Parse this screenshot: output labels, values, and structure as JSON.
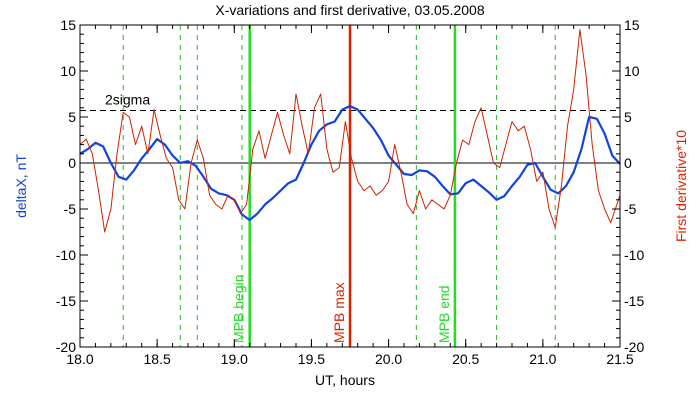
{
  "chart_data": {
    "type": "line",
    "title": "X-variations and first derivative, 03.05.2008",
    "xlabel": "UT, hours",
    "ylabel": "deltaX, nT",
    "y2label": "First derivative*10",
    "xlim": [
      18.0,
      21.5
    ],
    "ylim": [
      -20,
      15
    ],
    "y2lim": [
      -20,
      15
    ],
    "x_ticks": [
      "18.0",
      "18.5",
      "19.0",
      "19.5",
      "20.0",
      "20.5",
      "21.0",
      "21.5"
    ],
    "y_ticks": [
      "-20",
      "-15",
      "-10",
      "-5",
      "0",
      "5",
      "10",
      "15"
    ],
    "threshold": {
      "label": "2sigma",
      "value": 5.7
    },
    "zero_line": 0,
    "markers": [
      {
        "label": "MPB begin",
        "x": 19.1,
        "color": "#22dd22"
      },
      {
        "label": "MPB max",
        "x": 19.75,
        "color": "#dd2200"
      },
      {
        "label": "MPB end",
        "x": 20.43,
        "color": "#22dd22"
      }
    ],
    "dashed_lines_x": [
      18.28,
      18.65,
      18.76,
      19.05,
      20.18,
      20.7,
      21.08
    ],
    "dashed_color": "#22bb22",
    "series": [
      {
        "axis": "left",
        "color": "#1144dd",
        "x": [
          18.0,
          18.05,
          18.1,
          18.15,
          18.2,
          18.25,
          18.3,
          18.35,
          18.4,
          18.45,
          18.5,
          18.55,
          18.6,
          18.65,
          18.7,
          18.75,
          18.8,
          18.85,
          18.9,
          18.95,
          19.0,
          19.05,
          19.1,
          19.15,
          19.2,
          19.25,
          19.3,
          19.35,
          19.4,
          19.45,
          19.5,
          19.55,
          19.6,
          19.65,
          19.7,
          19.75,
          19.8,
          19.85,
          19.9,
          19.95,
          20.0,
          20.05,
          20.1,
          20.15,
          20.2,
          20.25,
          20.3,
          20.35,
          20.4,
          20.45,
          20.5,
          20.55,
          20.6,
          20.65,
          20.7,
          20.75,
          20.8,
          20.85,
          20.9,
          20.95,
          21.0,
          21.05,
          21.1,
          21.15,
          21.2,
          21.25,
          21.3,
          21.35,
          21.4,
          21.45,
          21.5
        ],
        "y": [
          1.0,
          1.5,
          2.2,
          1.8,
          0.0,
          -1.5,
          -1.8,
          -0.8,
          0.5,
          1.5,
          2.6,
          2.0,
          0.8,
          0.0,
          0.2,
          -0.3,
          -1.5,
          -2.8,
          -3.3,
          -3.5,
          -4.0,
          -5.6,
          -6.2,
          -5.5,
          -4.5,
          -3.8,
          -3.0,
          -2.2,
          -1.8,
          0.0,
          2.0,
          3.5,
          4.2,
          4.5,
          5.8,
          6.2,
          5.8,
          4.8,
          3.8,
          2.5,
          0.8,
          -0.2,
          -1.2,
          -1.3,
          -0.8,
          -0.9,
          -1.5,
          -2.5,
          -3.4,
          -3.3,
          -2.2,
          -1.8,
          -2.5,
          -3.2,
          -4.0,
          -3.6,
          -2.5,
          -1.5,
          -0.2,
          0.0,
          -1.5,
          -2.9,
          -3.3,
          -2.5,
          -1.0,
          1.5,
          5.0,
          4.8,
          3.2,
          0.8,
          -0.1
        ]
      },
      {
        "axis": "right",
        "color": "#cc2200",
        "x": [
          18.0,
          18.04,
          18.08,
          18.12,
          18.16,
          18.2,
          18.24,
          18.28,
          18.32,
          18.36,
          18.4,
          18.44,
          18.48,
          18.52,
          18.56,
          18.6,
          18.64,
          18.68,
          18.72,
          18.76,
          18.8,
          18.84,
          18.88,
          18.92,
          18.96,
          19.0,
          19.04,
          19.08,
          19.12,
          19.16,
          19.2,
          19.24,
          19.28,
          19.32,
          19.36,
          19.4,
          19.44,
          19.48,
          19.52,
          19.56,
          19.6,
          19.64,
          19.68,
          19.72,
          19.76,
          19.8,
          19.84,
          19.88,
          19.92,
          19.96,
          20.0,
          20.04,
          20.08,
          20.12,
          20.16,
          20.2,
          20.24,
          20.28,
          20.32,
          20.36,
          20.4,
          20.44,
          20.48,
          20.52,
          20.56,
          20.6,
          20.64,
          20.68,
          20.72,
          20.76,
          20.8,
          20.84,
          20.88,
          20.92,
          20.96,
          21.0,
          21.04,
          21.08,
          21.12,
          21.16,
          21.2,
          21.24,
          21.28,
          21.32,
          21.36,
          21.4,
          21.44,
          21.48,
          21.5
        ],
        "y": [
          2.0,
          2.6,
          1.0,
          -3.0,
          -7.5,
          -5.0,
          1.0,
          5.5,
          5.0,
          2.0,
          4.0,
          1.0,
          5.8,
          3.0,
          0.5,
          -0.5,
          -4.0,
          -5.0,
          0.0,
          2.5,
          0.5,
          -3.5,
          -4.5,
          -5.0,
          -3.5,
          -4.0,
          -5.5,
          -4.5,
          1.5,
          3.5,
          0.5,
          3.0,
          5.5,
          3.0,
          1.0,
          7.5,
          4.0,
          1.0,
          6.0,
          7.5,
          1.5,
          -1.0,
          -0.5,
          4.5,
          0.5,
          -2.0,
          -3.0,
          -2.5,
          -3.5,
          -3.0,
          -2.0,
          2.0,
          -1.0,
          -4.5,
          -5.5,
          -3.0,
          -5.0,
          -4.0,
          -4.5,
          -5.0,
          -3.5,
          0.0,
          2.5,
          2.0,
          4.5,
          6.0,
          3.0,
          0.0,
          -0.5,
          2.0,
          4.5,
          3.5,
          4.0,
          1.5,
          -2.0,
          -1.0,
          -5.0,
          -7.0,
          -2.5,
          4.0,
          8.0,
          14.5,
          9.5,
          2.0,
          -3.0,
          -5.0,
          -6.5,
          -4.5,
          -3.5
        ]
      }
    ],
    "grid": false
  }
}
